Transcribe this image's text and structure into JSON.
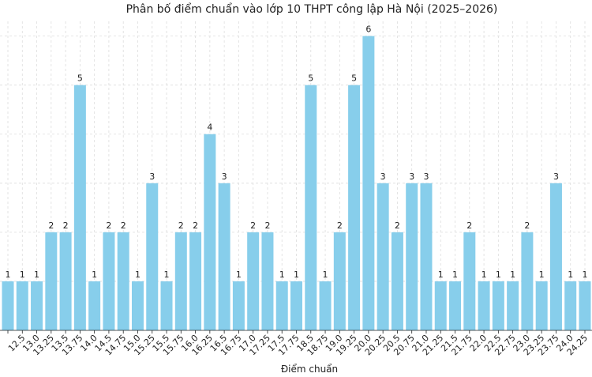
{
  "chart_data": {
    "type": "bar",
    "title": "Phân bố điểm chuẩn vào lớp 10 THPT công lập Hà Nội (2025–2026)",
    "x_label": "Điểm chuẩn",
    "categories": [
      null,
      "12.5",
      "13.0",
      "13.25",
      "13.5",
      "13.75",
      "14.0",
      "14.5",
      "14.75",
      "15.0",
      "15.25",
      "15.5",
      "15.75",
      "16.0",
      "16.25",
      "16.5",
      "16.75",
      "17.0",
      "17.25",
      "17.5",
      "17.75",
      "18.5",
      "18.75",
      "19.0",
      "19.25",
      "20.0",
      "20.25",
      "20.5",
      "20.75",
      "21.0",
      "21.25",
      "21.5",
      "21.75",
      "22.0",
      "22.5",
      "22.75",
      "23.0",
      "23.25",
      "23.75",
      "24.0",
      "24.25"
    ],
    "values": [
      1,
      1,
      1,
      2,
      2,
      5,
      1,
      2,
      2,
      1,
      3,
      1,
      2,
      2,
      4,
      3,
      1,
      2,
      2,
      1,
      1,
      5,
      1,
      2,
      5,
      6,
      3,
      2,
      3,
      3,
      1,
      1,
      2,
      1,
      1,
      1,
      2,
      1,
      3,
      1,
      1
    ],
    "color": "#87ceeb",
    "ylim": [
      0,
      6.3
    ],
    "yticks": [
      0,
      1,
      2,
      3,
      4,
      5,
      6
    ],
    "grid": true
  }
}
